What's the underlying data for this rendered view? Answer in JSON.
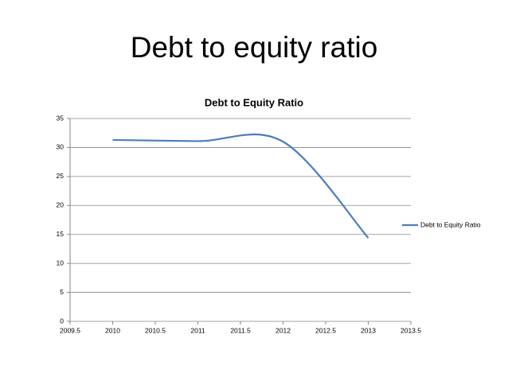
{
  "heading": "Debt to equity ratio",
  "chart_data": {
    "type": "line",
    "title": "Debt to Equity Ratio",
    "x": [
      2010,
      2011,
      2012,
      2013
    ],
    "series": [
      {
        "name": "Debt to Equity Ratio",
        "color": "#4a7ebb",
        "values": [
          31.3,
          31.1,
          31.0,
          14.4
        ]
      }
    ],
    "xlim": [
      2009.5,
      2013.5
    ],
    "xticks": [
      2009.5,
      2010,
      2010.5,
      2011,
      2011.5,
      2012,
      2012.5,
      2013,
      2013.5
    ],
    "ylim": [
      0,
      35
    ],
    "yticks": [
      0,
      5,
      10,
      15,
      20,
      25,
      30,
      35
    ],
    "grid": true,
    "smooth": true,
    "legend": "right"
  }
}
